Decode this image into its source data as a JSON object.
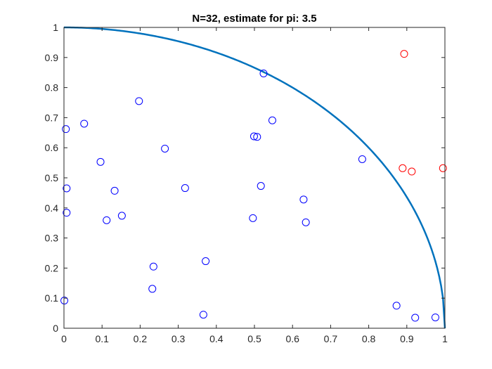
{
  "chart_data": {
    "type": "scatter",
    "title": "N=32, estimate for pi: 3.5",
    "xlabel": "",
    "ylabel": "",
    "xlim": [
      0,
      1
    ],
    "ylim": [
      0,
      1
    ],
    "xticks": [
      0,
      0.1,
      0.2,
      0.3,
      0.4,
      0.5,
      0.6,
      0.7,
      0.8,
      0.9,
      1
    ],
    "yticks": [
      0,
      0.1,
      0.2,
      0.3,
      0.4,
      0.5,
      0.6,
      0.7,
      0.8,
      0.9,
      1
    ],
    "xtick_labels": [
      "0",
      "0.1",
      "0.2",
      "0.3",
      "0.4",
      "0.5",
      "0.6",
      "0.7",
      "0.8",
      "0.9",
      "1"
    ],
    "ytick_labels": [
      "0",
      "0.1",
      "0.2",
      "0.3",
      "0.4",
      "0.5",
      "0.6",
      "0.7",
      "0.8",
      "0.9",
      "1"
    ],
    "grid": false,
    "series": [
      {
        "color": "#0000ff",
        "marker": "open-circle",
        "points": [
          [
            0.005,
            0.662
          ],
          [
            0.053,
            0.68
          ],
          [
            0.197,
            0.755
          ],
          [
            0.096,
            0.553
          ],
          [
            0.265,
            0.597
          ],
          [
            0.133,
            0.457
          ],
          [
            0.007,
            0.465
          ],
          [
            0.007,
            0.384
          ],
          [
            0.112,
            0.359
          ],
          [
            0.152,
            0.374
          ],
          [
            0.318,
            0.466
          ],
          [
            0.235,
            0.205
          ],
          [
            0.372,
            0.223
          ],
          [
            0.232,
            0.131
          ],
          [
            0.001,
            0.092
          ],
          [
            0.366,
            0.045
          ],
          [
            0.524,
            0.847
          ],
          [
            0.547,
            0.691
          ],
          [
            0.499,
            0.638
          ],
          [
            0.507,
            0.636
          ],
          [
            0.517,
            0.473
          ],
          [
            0.629,
            0.428
          ],
          [
            0.496,
            0.366
          ],
          [
            0.635,
            0.352
          ],
          [
            0.783,
            0.562
          ],
          [
            0.873,
            0.075
          ],
          [
            0.922,
            0.035
          ],
          [
            0.975,
            0.036
          ]
        ]
      },
      {
        "color": "#ff0000",
        "marker": "open-circle",
        "points": [
          [
            0.893,
            0.912
          ],
          [
            0.889,
            0.532
          ],
          [
            0.913,
            0.521
          ],
          [
            0.995,
            0.532
          ]
        ]
      }
    ],
    "curve": {
      "type": "quarter-circle",
      "radius": 1,
      "color": "#0072bd"
    }
  }
}
